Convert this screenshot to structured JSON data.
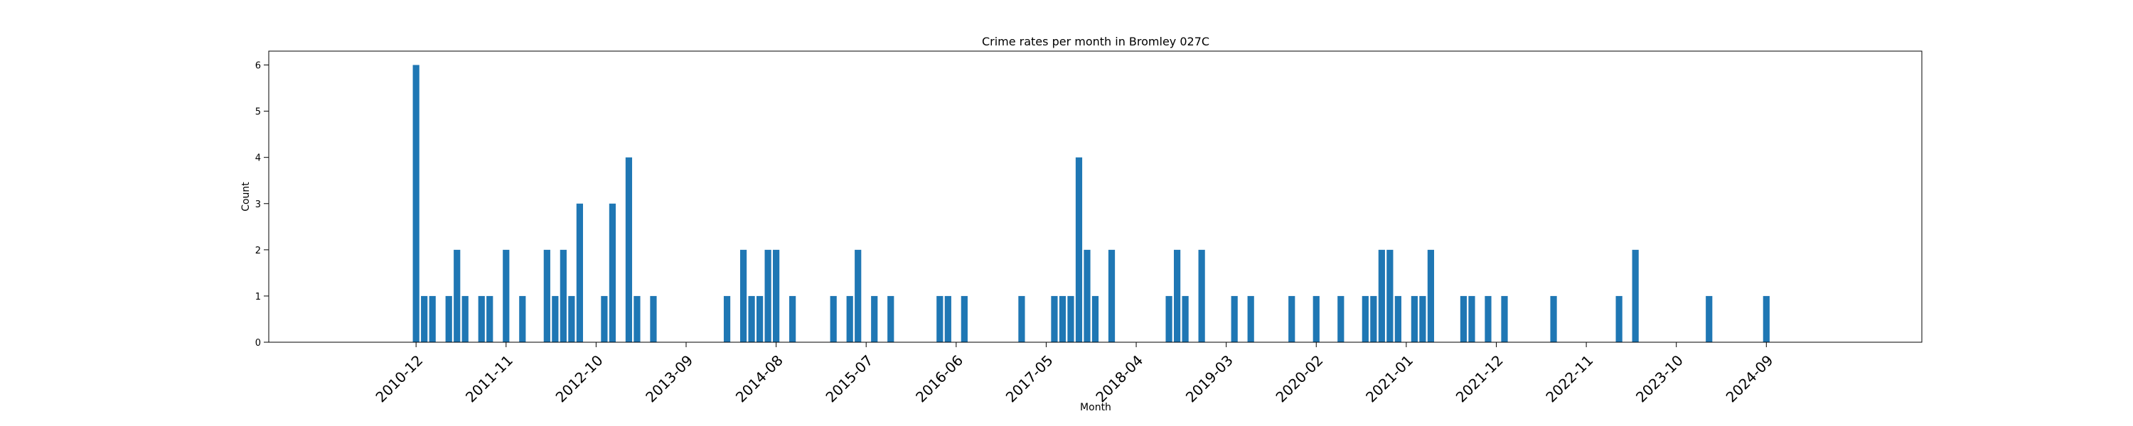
{
  "chart_data": {
    "type": "bar",
    "title": "Crime rates per month in Bromley 027C",
    "xlabel": "Month",
    "ylabel": "Count",
    "ylim": [
      0,
      6.3
    ],
    "yticks": [
      0,
      1,
      2,
      3,
      4,
      5,
      6
    ],
    "xlim": [
      "2009-06",
      "2026-04"
    ],
    "xticks": [
      "2010-12",
      "2011-11",
      "2012-10",
      "2013-09",
      "2014-08",
      "2015-07",
      "2016-06",
      "2017-05",
      "2018-04",
      "2019-03",
      "2020-02",
      "2021-01",
      "2021-12",
      "2022-11",
      "2023-10",
      "2024-09"
    ],
    "color": "#1f77b4",
    "grid": false,
    "categories": [
      "2010-12",
      "2011-01",
      "2011-02",
      "2011-04",
      "2011-05",
      "2011-06",
      "2011-08",
      "2011-09",
      "2011-11",
      "2012-01",
      "2012-04",
      "2012-05",
      "2012-06",
      "2012-07",
      "2012-08",
      "2012-11",
      "2012-12",
      "2013-02",
      "2013-03",
      "2013-05",
      "2014-02",
      "2014-04",
      "2014-05",
      "2014-06",
      "2014-07",
      "2014-08",
      "2014-10",
      "2015-03",
      "2015-05",
      "2015-06",
      "2015-08",
      "2015-10",
      "2016-04",
      "2016-05",
      "2016-07",
      "2017-02",
      "2017-06",
      "2017-07",
      "2017-08",
      "2017-09",
      "2017-10",
      "2017-11",
      "2018-01",
      "2018-08",
      "2018-09",
      "2018-10",
      "2018-12",
      "2019-04",
      "2019-06",
      "2019-11",
      "2020-02",
      "2020-05",
      "2020-08",
      "2020-09",
      "2020-10",
      "2020-11",
      "2020-12",
      "2021-02",
      "2021-03",
      "2021-04",
      "2021-08",
      "2021-09",
      "2021-11",
      "2022-01",
      "2022-07",
      "2023-03",
      "2023-05",
      "2024-02",
      "2024-09"
    ],
    "values": [
      6,
      1,
      1,
      1,
      2,
      1,
      1,
      1,
      2,
      1,
      2,
      1,
      2,
      1,
      3,
      1,
      3,
      4,
      1,
      1,
      1,
      2,
      1,
      1,
      2,
      2,
      1,
      1,
      1,
      2,
      1,
      1,
      1,
      1,
      1,
      1,
      1,
      1,
      1,
      4,
      2,
      1,
      2,
      1,
      2,
      1,
      2,
      1,
      1,
      1,
      1,
      1,
      1,
      1,
      2,
      2,
      1,
      1,
      1,
      2,
      1,
      1,
      1,
      1,
      1,
      1,
      2,
      1,
      1
    ]
  }
}
